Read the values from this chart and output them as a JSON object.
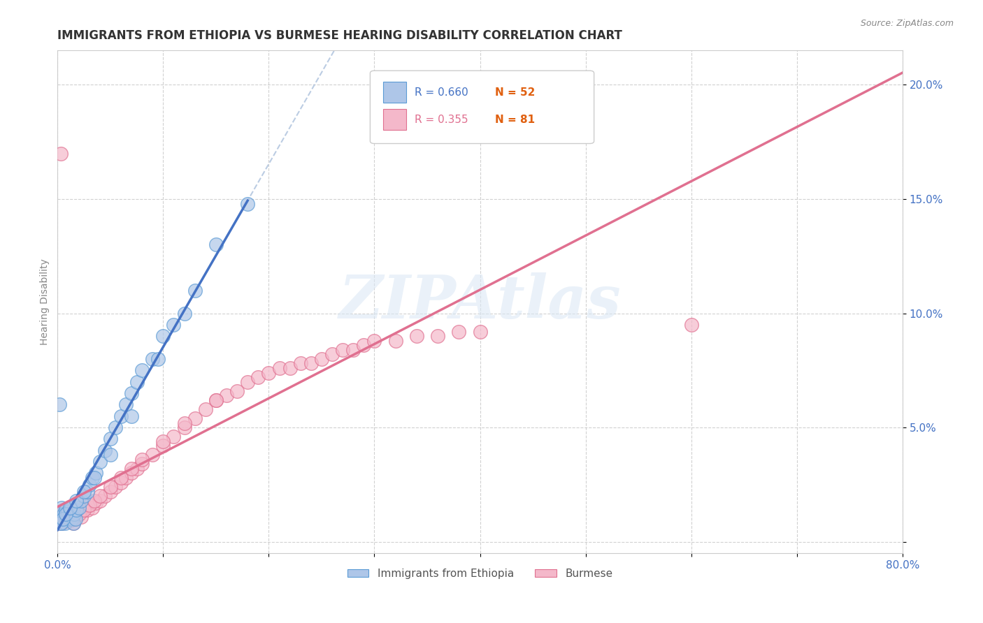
{
  "title": "IMMIGRANTS FROM ETHIOPIA VS BURMESE HEARING DISABILITY CORRELATION CHART",
  "source_text": "Source: ZipAtlas.com",
  "ylabel": "Hearing Disability",
  "xlim": [
    0.0,
    0.8
  ],
  "ylim": [
    -0.005,
    0.215
  ],
  "xticks": [
    0.0,
    0.1,
    0.2,
    0.3,
    0.4,
    0.5,
    0.6,
    0.7,
    0.8
  ],
  "xticklabels": [
    "0.0%",
    "",
    "",
    "",
    "",
    "",
    "",
    "",
    "80.0%"
  ],
  "yticks": [
    0.0,
    0.05,
    0.1,
    0.15,
    0.2
  ],
  "yticklabels": [
    "",
    "5.0%",
    "10.0%",
    "15.0%",
    "20.0%"
  ],
  "ethiopia_fill": "#aec6e8",
  "ethiopia_edge": "#5b9bd5",
  "burmese_fill": "#f4b8ca",
  "burmese_edge": "#e07090",
  "trendline_ethiopia_color": "#4472c4",
  "trendline_burmese_color": "#e07090",
  "confband_color": "#b0c8e8",
  "legend_r_color": "#4472c4",
  "legend_n_color": "#4472c4",
  "legend_ethiopia_label": "Immigrants from Ethiopia",
  "legend_burmese_label": "Burmese",
  "watermark": "ZIPAtlas",
  "title_fontsize": 12,
  "axis_label_fontsize": 10,
  "tick_fontsize": 11,
  "legend_fontsize": 11,
  "ethiopia_scatter_x": [
    0.001,
    0.002,
    0.003,
    0.004,
    0.005,
    0.006,
    0.007,
    0.008,
    0.009,
    0.01,
    0.011,
    0.012,
    0.013,
    0.014,
    0.015,
    0.016,
    0.017,
    0.018,
    0.02,
    0.022,
    0.025,
    0.028,
    0.03,
    0.033,
    0.036,
    0.04,
    0.045,
    0.05,
    0.055,
    0.06,
    0.065,
    0.07,
    0.075,
    0.08,
    0.09,
    0.1,
    0.11,
    0.12,
    0.13,
    0.15,
    0.003,
    0.005,
    0.008,
    0.012,
    0.018,
    0.025,
    0.035,
    0.05,
    0.07,
    0.095,
    0.002,
    0.18
  ],
  "ethiopia_scatter_y": [
    0.01,
    0.012,
    0.008,
    0.015,
    0.01,
    0.012,
    0.008,
    0.014,
    0.011,
    0.013,
    0.01,
    0.012,
    0.015,
    0.01,
    0.008,
    0.012,
    0.01,
    0.014,
    0.015,
    0.018,
    0.02,
    0.022,
    0.025,
    0.028,
    0.03,
    0.035,
    0.04,
    0.045,
    0.05,
    0.055,
    0.06,
    0.065,
    0.07,
    0.075,
    0.08,
    0.09,
    0.095,
    0.1,
    0.11,
    0.13,
    0.008,
    0.01,
    0.012,
    0.015,
    0.018,
    0.022,
    0.028,
    0.038,
    0.055,
    0.08,
    0.06,
    0.148
  ],
  "burmese_scatter_x": [
    0.001,
    0.002,
    0.003,
    0.004,
    0.005,
    0.006,
    0.007,
    0.008,
    0.009,
    0.01,
    0.011,
    0.012,
    0.013,
    0.014,
    0.015,
    0.016,
    0.018,
    0.02,
    0.022,
    0.025,
    0.028,
    0.03,
    0.033,
    0.036,
    0.04,
    0.045,
    0.05,
    0.055,
    0.06,
    0.065,
    0.07,
    0.075,
    0.08,
    0.09,
    0.1,
    0.11,
    0.12,
    0.13,
    0.14,
    0.15,
    0.16,
    0.17,
    0.18,
    0.19,
    0.2,
    0.21,
    0.22,
    0.23,
    0.24,
    0.25,
    0.26,
    0.27,
    0.28,
    0.29,
    0.3,
    0.32,
    0.34,
    0.36,
    0.38,
    0.4,
    0.002,
    0.004,
    0.006,
    0.008,
    0.012,
    0.016,
    0.02,
    0.025,
    0.03,
    0.035,
    0.04,
    0.05,
    0.06,
    0.07,
    0.08,
    0.1,
    0.12,
    0.15,
    0.6,
    0.45,
    0.003
  ],
  "burmese_scatter_y": [
    0.008,
    0.01,
    0.009,
    0.012,
    0.01,
    0.011,
    0.009,
    0.013,
    0.01,
    0.012,
    0.009,
    0.011,
    0.01,
    0.012,
    0.008,
    0.01,
    0.012,
    0.013,
    0.011,
    0.015,
    0.014,
    0.016,
    0.015,
    0.017,
    0.018,
    0.02,
    0.022,
    0.024,
    0.026,
    0.028,
    0.03,
    0.032,
    0.034,
    0.038,
    0.042,
    0.046,
    0.05,
    0.054,
    0.058,
    0.062,
    0.064,
    0.066,
    0.07,
    0.072,
    0.074,
    0.076,
    0.076,
    0.078,
    0.078,
    0.08,
    0.082,
    0.084,
    0.084,
    0.086,
    0.088,
    0.088,
    0.09,
    0.09,
    0.092,
    0.092,
    0.009,
    0.008,
    0.01,
    0.009,
    0.011,
    0.01,
    0.012,
    0.014,
    0.016,
    0.018,
    0.02,
    0.024,
    0.028,
    0.032,
    0.036,
    0.044,
    0.052,
    0.062,
    0.095,
    0.19,
    0.17
  ],
  "background_color": "#ffffff",
  "grid_color": "#cccccc",
  "tick_label_color": "#4472c4"
}
